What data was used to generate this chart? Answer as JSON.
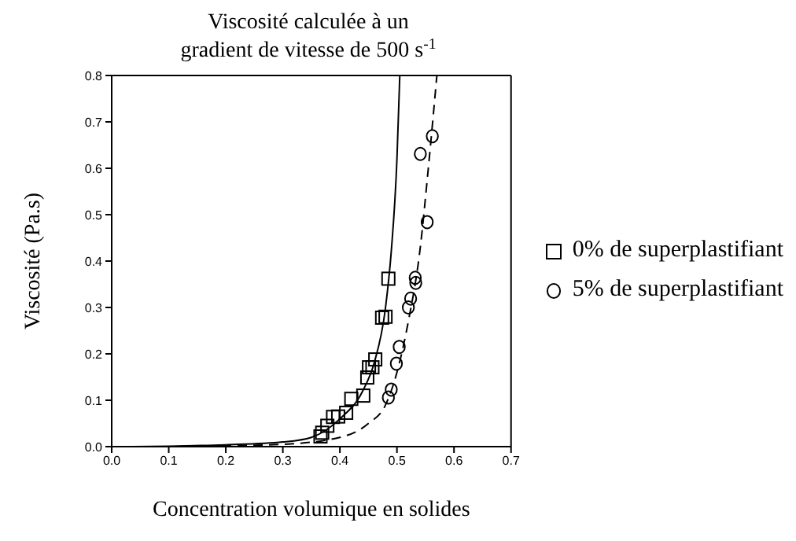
{
  "chart_data": {
    "type": "scatter",
    "title": "Viscosité calculée à un gradient de vitesse de 500 s$^{-1}$",
    "xlabel": "Concentration volumique en solides",
    "ylabel": "Viscosité (Pa.s)",
    "xlim": [
      0,
      0.7
    ],
    "xticks": [
      {
        "value": 0,
        "label": "0.0"
      },
      0.1,
      0.2,
      0.3,
      0.4,
      0.5,
      0.6,
      0.7
    ],
    "ylim": [
      0,
      0.8
    ],
    "yticks": [
      {
        "value": 0,
        "label": "0.0"
      },
      0.1,
      0.2,
      0.3,
      0.4,
      0.5,
      0.6,
      0.7,
      0.8
    ],
    "legend": "right",
    "series": [
      {
        "name": "0% de superplastifiant",
        "marker": "square",
        "color": "#000000",
        "x": [
          0.366,
          0.369,
          0.378,
          0.388,
          0.397,
          0.411,
          0.42,
          0.441,
          0.448,
          0.451,
          0.457,
          0.462,
          0.474,
          0.48,
          0.485
        ],
        "values": [
          0.022,
          0.03,
          0.045,
          0.064,
          0.065,
          0.073,
          0.103,
          0.11,
          0.149,
          0.171,
          0.171,
          0.188,
          0.278,
          0.28,
          0.362
        ]
      },
      {
        "name": "5% de superplastifiant",
        "marker": "circle",
        "color": "#000000",
        "x": [
          0.485,
          0.49,
          0.499,
          0.504,
          0.52,
          0.524,
          0.533,
          0.532,
          0.553,
          0.541,
          0.562
        ],
        "values": [
          0.106,
          0.123,
          0.179,
          0.215,
          0.3,
          0.319,
          0.353,
          0.364,
          0.484,
          0.631,
          0.669
        ]
      },
      {
        "type": "line",
        "line_style": "solid",
        "color": "#000000",
        "x": [
          0.0,
          0.1,
          0.2,
          0.3,
          0.35,
          0.4,
          0.44,
          0.46,
          0.48,
          0.49,
          0.5,
          0.505
        ],
        "values": [
          0.0,
          0.001,
          0.004,
          0.01,
          0.02,
          0.06,
          0.12,
          0.18,
          0.3,
          0.42,
          0.62,
          0.8
        ]
      },
      {
        "type": "line",
        "line_style": "dashed",
        "color": "#000000",
        "x": [
          0.0,
          0.1,
          0.2,
          0.3,
          0.4,
          0.45,
          0.48,
          0.5,
          0.52,
          0.54,
          0.555,
          0.57
        ],
        "values": [
          0.0,
          0.0,
          0.002,
          0.005,
          0.02,
          0.05,
          0.09,
          0.16,
          0.27,
          0.42,
          0.6,
          0.8
        ]
      }
    ]
  }
}
